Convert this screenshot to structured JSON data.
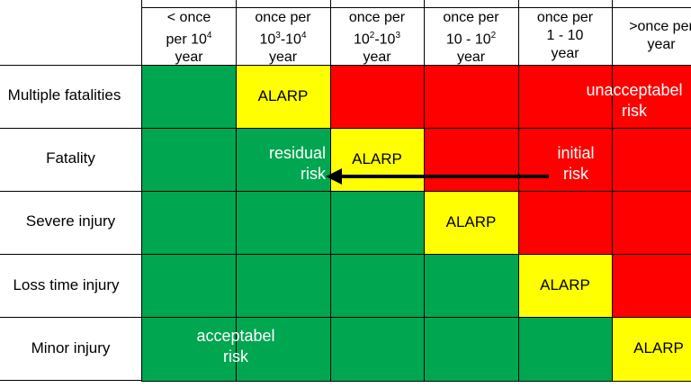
{
  "columns": [
    {
      "line1": "< once",
      "line2_base": "per 10",
      "line2_sup": "4",
      "line3": "year"
    },
    {
      "line1": "once per",
      "line2_base": "10",
      "line2_sup": "3",
      "line2_rest": "-10",
      "line2_sup2": "4",
      "line3": "year"
    },
    {
      "line1": "once per",
      "line2_base": "10",
      "line2_sup": "2",
      "line2_rest": "-10",
      "line2_sup2": "3",
      "line3": "year"
    },
    {
      "line1": "once per",
      "line2_base": "10 - 10",
      "line2_sup": "2",
      "line3": "year"
    },
    {
      "line1": "once per",
      "line2_base": "1 - 10",
      "line3": "year"
    },
    {
      "line1": ">once per",
      "line3": "year"
    }
  ],
  "rows": [
    {
      "label": "Multiple fatalities"
    },
    {
      "label": "Fatality"
    },
    {
      "label": "Severe injury"
    },
    {
      "label": "Loss time injury"
    },
    {
      "label": "Minor injury"
    }
  ],
  "grid_colors": [
    [
      "green",
      "yellow",
      "red",
      "red",
      "red",
      "red"
    ],
    [
      "green",
      "green",
      "yellow",
      "red",
      "red",
      "red"
    ],
    [
      "green",
      "green",
      "green",
      "yellow",
      "red",
      "red"
    ],
    [
      "green",
      "green",
      "green",
      "green",
      "yellow",
      "red"
    ],
    [
      "green",
      "green",
      "green",
      "green",
      "green",
      "yellow"
    ]
  ],
  "colors": {
    "green": "#00a650",
    "yellow": "#ffff00",
    "red": "#ff0000"
  },
  "alarp_text": "ALARP",
  "notes": {
    "unacceptable": {
      "line1": "unacceptabel",
      "line2": "risk"
    },
    "initial": {
      "line1": "initial",
      "line2": "risk"
    },
    "residual": {
      "line1": "residual",
      "line2": "risk"
    },
    "acceptable": {
      "line1": "acceptabel",
      "line2": "risk"
    }
  }
}
